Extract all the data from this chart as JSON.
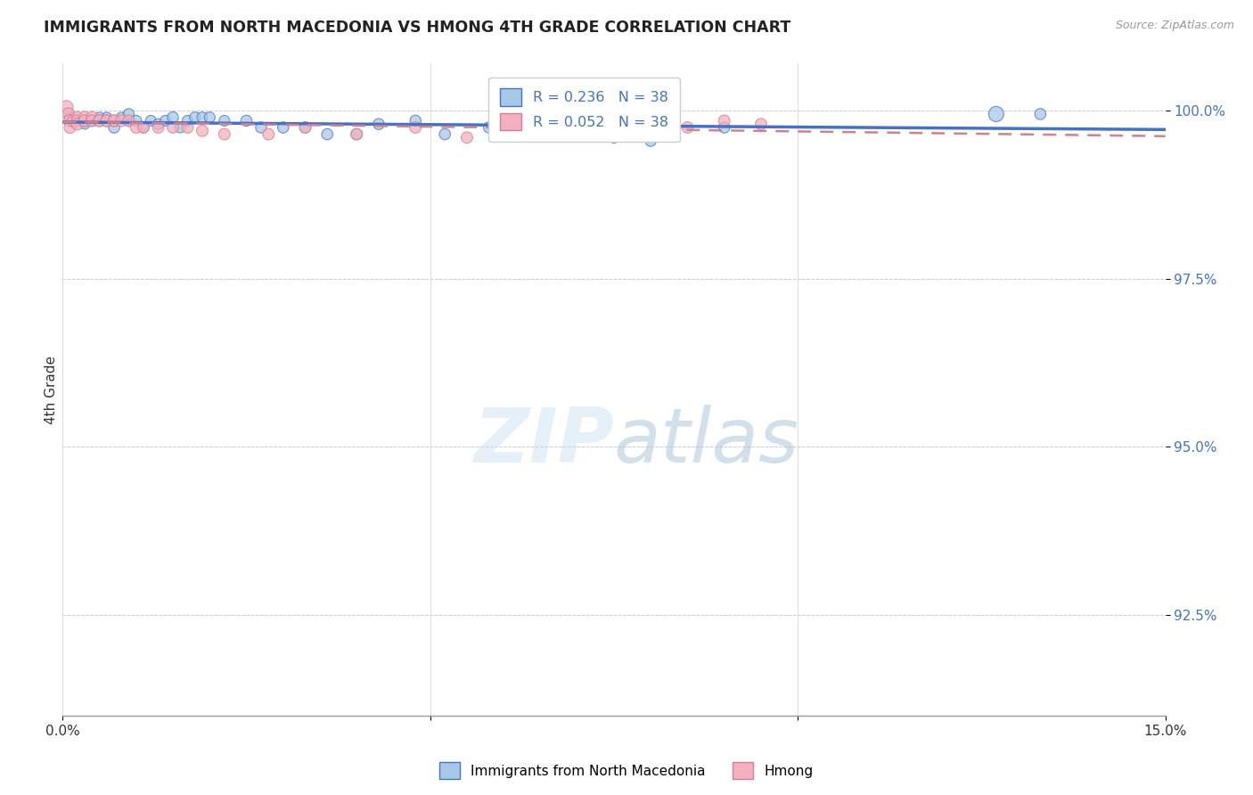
{
  "title": "IMMIGRANTS FROM NORTH MACEDONIA VS HMONG 4TH GRADE CORRELATION CHART",
  "source": "Source: ZipAtlas.com",
  "ylabel": "4th Grade",
  "ylabel_ticks": [
    "100.0%",
    "97.5%",
    "95.0%",
    "92.5%"
  ],
  "ylabel_values": [
    1.0,
    0.975,
    0.95,
    0.925
  ],
  "xmin": 0.0,
  "xmax": 0.15,
  "ymin": 0.91,
  "ymax": 1.007,
  "legend_r1": "R = 0.236",
  "legend_n1": "N = 38",
  "legend_r2": "R = 0.052",
  "legend_n2": "N = 38",
  "color_blue": "#a8c8e8",
  "color_pink": "#f4b0c0",
  "color_blue_line": "#4472c4",
  "color_pink_line": "#d08090",
  "color_title": "#222222",
  "color_yaxis": "#4472c4",
  "blue_x": [
    0.001,
    0.003,
    0.004,
    0.005,
    0.006,
    0.007,
    0.008,
    0.009,
    0.009,
    0.01,
    0.011,
    0.012,
    0.013,
    0.014,
    0.015,
    0.016,
    0.017,
    0.018,
    0.019,
    0.02,
    0.022,
    0.025,
    0.027,
    0.03,
    0.033,
    0.036,
    0.04,
    0.043,
    0.048,
    0.052,
    0.058,
    0.063,
    0.068,
    0.075,
    0.08,
    0.09,
    0.127,
    0.133
  ],
  "blue_y": [
    0.999,
    0.998,
    0.9985,
    0.999,
    0.999,
    0.9975,
    0.999,
    0.9985,
    0.9995,
    0.9985,
    0.9975,
    0.9985,
    0.998,
    0.9985,
    0.999,
    0.9975,
    0.9985,
    0.999,
    0.999,
    0.999,
    0.9985,
    0.9985,
    0.9975,
    0.9975,
    0.9975,
    0.9965,
    0.9965,
    0.998,
    0.9985,
    0.9965,
    0.9975,
    0.9965,
    0.9975,
    0.996,
    0.9955,
    0.9975,
    0.9995,
    0.9995
  ],
  "blue_size": [
    80,
    70,
    80,
    70,
    70,
    80,
    70,
    70,
    75,
    75,
    75,
    75,
    75,
    75,
    80,
    75,
    75,
    75,
    75,
    75,
    75,
    80,
    80,
    80,
    80,
    80,
    80,
    80,
    80,
    80,
    80,
    80,
    80,
    80,
    80,
    80,
    150,
    80
  ],
  "pink_x": [
    0.0005,
    0.0008,
    0.001,
    0.001,
    0.0015,
    0.002,
    0.002,
    0.002,
    0.003,
    0.003,
    0.003,
    0.004,
    0.004,
    0.005,
    0.005,
    0.006,
    0.006,
    0.007,
    0.007,
    0.008,
    0.009,
    0.01,
    0.011,
    0.013,
    0.015,
    0.017,
    0.019,
    0.022,
    0.028,
    0.033,
    0.04,
    0.048,
    0.055,
    0.063,
    0.065,
    0.085,
    0.09,
    0.095
  ],
  "pink_y": [
    1.0005,
    0.9995,
    0.9985,
    0.9975,
    0.9985,
    0.999,
    0.9985,
    0.998,
    0.9985,
    0.999,
    0.9985,
    0.999,
    0.9985,
    0.9985,
    0.9985,
    0.9985,
    0.9985,
    0.9985,
    0.9985,
    0.9985,
    0.9985,
    0.9975,
    0.9975,
    0.9975,
    0.9975,
    0.9975,
    0.997,
    0.9965,
    0.9965,
    0.9975,
    0.9965,
    0.9975,
    0.996,
    0.9975,
    0.9975,
    0.9975,
    0.9985,
    0.998
  ],
  "pink_size": [
    120,
    100,
    100,
    90,
    100,
    90,
    90,
    90,
    95,
    90,
    90,
    90,
    90,
    90,
    90,
    90,
    90,
    90,
    90,
    90,
    90,
    85,
    85,
    85,
    85,
    85,
    85,
    85,
    85,
    85,
    85,
    85,
    85,
    85,
    85,
    85,
    85,
    85
  ]
}
